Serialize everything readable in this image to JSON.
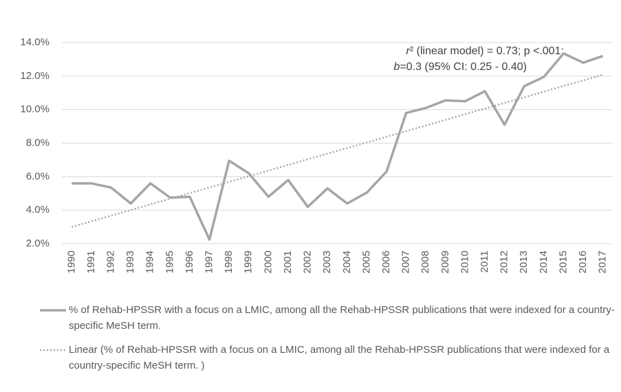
{
  "chart_data": {
    "type": "line",
    "categories": [
      "1990",
      "1991",
      "1992",
      "1993",
      "1994",
      "1995",
      "1996",
      "1997",
      "1998",
      "1999",
      "2000",
      "2001",
      "2002",
      "2003",
      "2004",
      "2005",
      "2006",
      "2007",
      "2008",
      "2009",
      "2010",
      "2011",
      "2012",
      "2013",
      "2014",
      "2015",
      "2016",
      "2017"
    ],
    "series": [
      {
        "name": "% of Rehab-HPSSR with a focus on a LMIC, among all the Rehab-HPSSR publications that were indexed for a country-specific MeSH term.",
        "color": "#a5a5a5",
        "style": "solid",
        "values": [
          5.6,
          5.6,
          5.35,
          4.4,
          5.6,
          4.75,
          4.8,
          2.25,
          6.95,
          6.2,
          4.8,
          5.8,
          4.2,
          5.3,
          4.4,
          5.05,
          6.3,
          9.8,
          10.1,
          10.55,
          10.5,
          11.1,
          9.1,
          11.4,
          11.95,
          13.35,
          12.8,
          13.2
        ]
      },
      {
        "name": "Linear (% of Rehab-HPSSR with a focus on a LMIC, among all the Rehab-HPSSR publications that were indexed for a country-specific MeSH term. )",
        "color": "#a5a5a5",
        "style": "dotted",
        "values": [
          3.0,
          3.34,
          3.67,
          4.01,
          4.35,
          4.68,
          5.02,
          5.35,
          5.69,
          6.03,
          6.36,
          6.7,
          7.04,
          7.37,
          7.71,
          8.04,
          8.38,
          8.72,
          9.05,
          9.39,
          9.73,
          10.06,
          10.4,
          10.73,
          11.07,
          11.41,
          11.74,
          12.08
        ]
      }
    ],
    "annotation": {
      "line1": [
        "r",
        "² (linear model) = 0.73; p <.001;"
      ],
      "line2": [
        "b",
        "=0.3 (95% CI: 0.25 - 0.40)"
      ]
    },
    "ylim": [
      2,
      14
    ],
    "yticks": [
      {
        "value": 2,
        "label": "2.0%"
      },
      {
        "value": 4,
        "label": "4.0%"
      },
      {
        "value": 6,
        "label": "6.0%"
      },
      {
        "value": 8,
        "label": "8.0%"
      },
      {
        "value": 10,
        "label": "10.0%"
      },
      {
        "value": 12,
        "label": "12.0%"
      },
      {
        "value": 14,
        "label": "14.0%"
      }
    ],
    "grid": true,
    "legend": "bottom"
  }
}
